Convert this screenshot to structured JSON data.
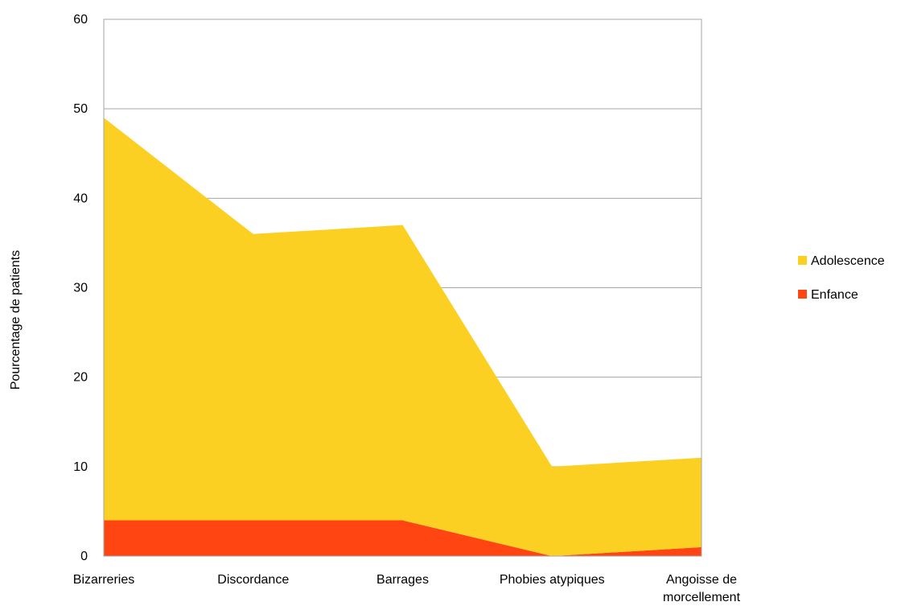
{
  "chart_data": {
    "type": "area",
    "stacked": true,
    "title": "",
    "xlabel": "",
    "ylabel": "Pourcentage de patients",
    "ylim": [
      0,
      60
    ],
    "yticks": [
      0,
      10,
      20,
      30,
      40,
      50,
      60
    ],
    "grid": true,
    "legend_position": "right",
    "categories": [
      [
        "Bizarreries"
      ],
      [
        "Discordance"
      ],
      [
        "Barrages"
      ],
      [
        "Phobies atypiques"
      ],
      [
        "Angoisse de",
        "morcellement"
      ]
    ],
    "series": [
      {
        "name": "Enfance",
        "color": "#FF4612",
        "values": [
          4,
          4,
          4,
          0,
          1
        ]
      },
      {
        "name": "Adolescence",
        "color": "#FCD023",
        "values": [
          45,
          32,
          33,
          10,
          10
        ]
      }
    ],
    "legend_order": [
      "Adolescence",
      "Enfance"
    ]
  }
}
